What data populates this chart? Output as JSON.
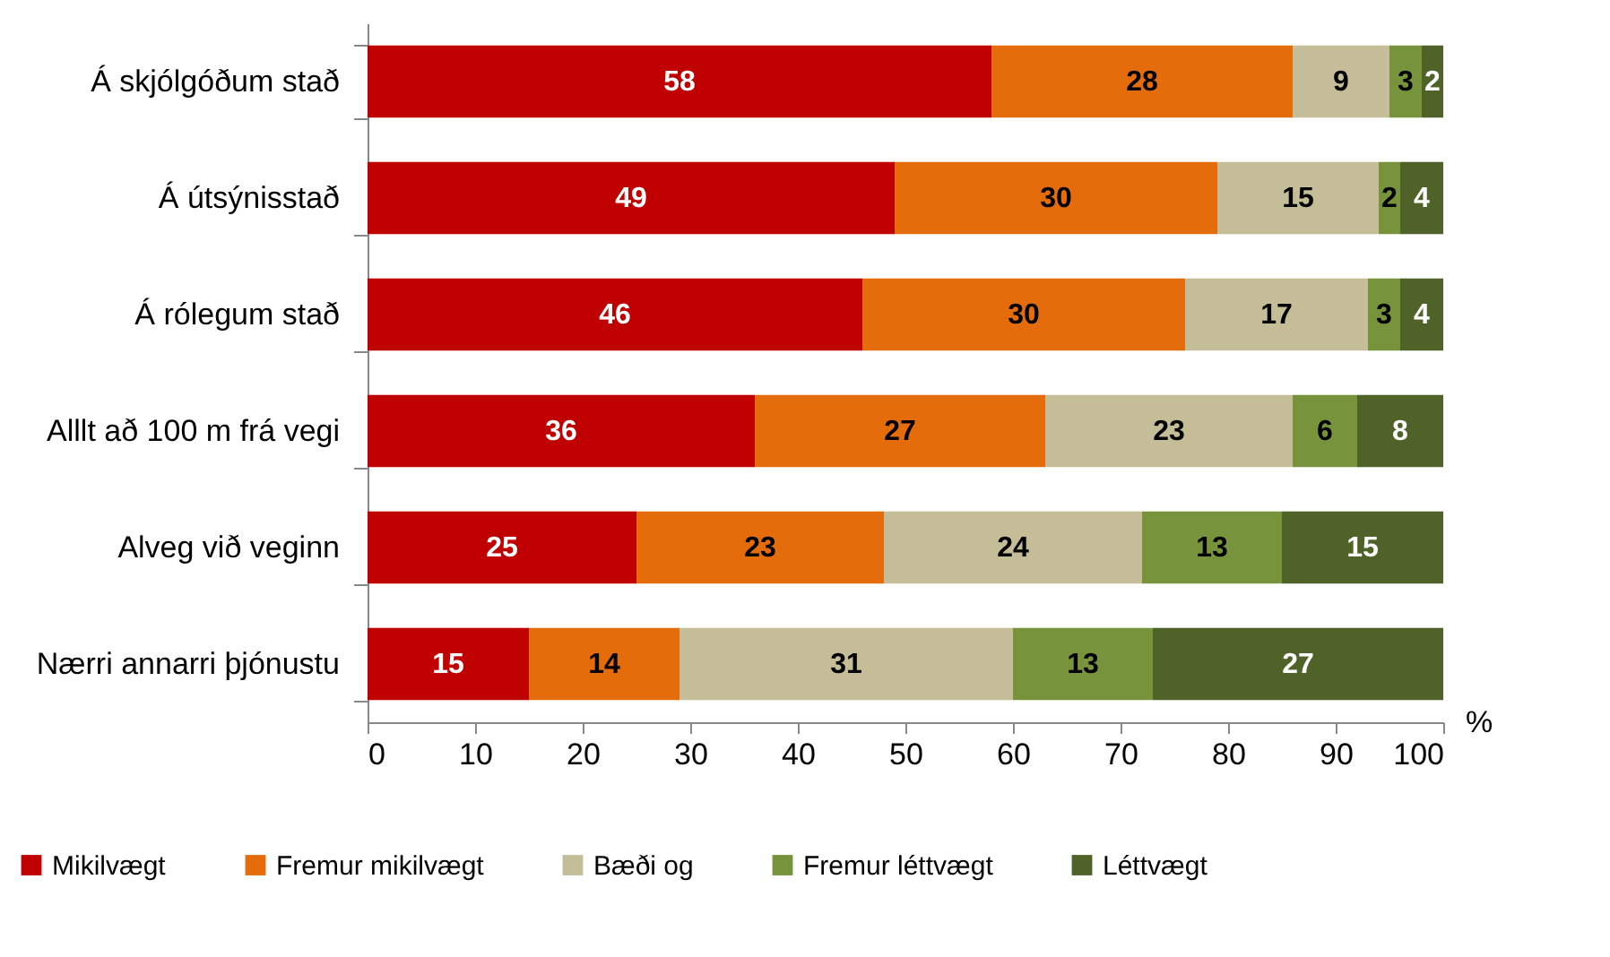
{
  "chart_data": {
    "type": "bar",
    "orientation": "horizontal",
    "stacked": true,
    "xlabel": "%",
    "categories": [
      "Á skjólgóðum stað",
      "Á útsýnisstað",
      "Á rólegum stað",
      "Alllt að 100 m frá vegi",
      "Alveg við veginn",
      "Nærri annarri þjónustu"
    ],
    "series": [
      {
        "name": "Mikilvægt",
        "color": "#c00000",
        "values": [
          58,
          49,
          46,
          36,
          25,
          15
        ]
      },
      {
        "name": "Fremur mikilvægt",
        "color": "#e46c0a",
        "values": [
          28,
          30,
          30,
          27,
          23,
          14
        ]
      },
      {
        "name": "Bæði og",
        "color": "#c4bd97",
        "values": [
          9,
          15,
          17,
          23,
          24,
          31
        ]
      },
      {
        "name": "Fremur léttvægt",
        "color": "#77933c",
        "values": [
          3,
          2,
          3,
          6,
          13,
          13
        ]
      },
      {
        "name": "Léttvægt",
        "color": "#4f6228",
        "values": [
          2,
          4,
          4,
          8,
          15,
          27
        ]
      }
    ],
    "xlim": [
      0,
      100
    ],
    "xticks": [
      0,
      10,
      20,
      30,
      40,
      50,
      60,
      70,
      80,
      90,
      100
    ],
    "data_labels": true,
    "grid": false,
    "legend": "bottom"
  }
}
